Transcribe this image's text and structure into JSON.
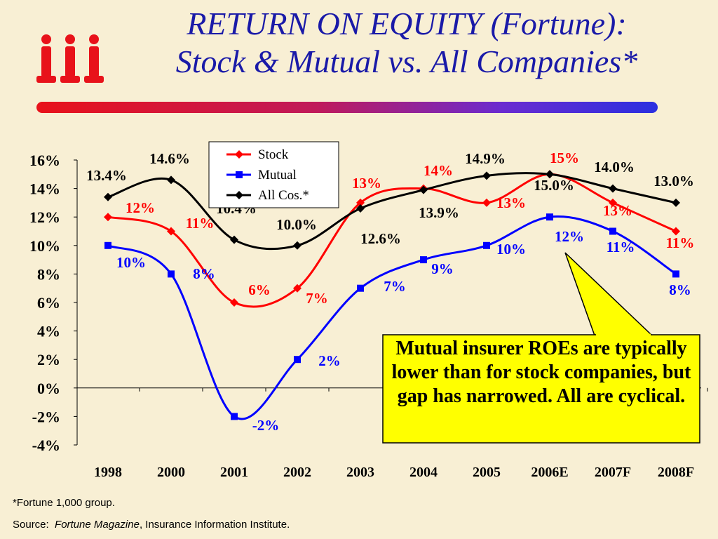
{
  "title": {
    "line1": "RETURN ON EQUITY (Fortune):",
    "line2": "Stock & Mutual vs. All Companies*"
  },
  "logo": {
    "name": "iii-logo",
    "text": "iii",
    "color": "#e8121a"
  },
  "callout": {
    "text": "Mutual insurer ROEs are typically lower than for stock companies, but gap has narrowed. All are cyclical.",
    "background": "#ffff00"
  },
  "footnote": "*Fortune 1,000 group.",
  "source": {
    "label": "Source:",
    "publication": "Fortune Magazine",
    "rest": ", Insurance Information Institute."
  },
  "chart_data": {
    "type": "line",
    "categories": [
      "1998",
      "2000",
      "2001",
      "2002",
      "2003",
      "2004",
      "2005",
      "2006E",
      "2007F",
      "2008F"
    ],
    "ylim": [
      -4,
      16
    ],
    "yticks": [
      "-4%",
      "-2%",
      "0%",
      "2%",
      "4%",
      "6%",
      "8%",
      "10%",
      "12%",
      "14%",
      "16%"
    ],
    "grid": false,
    "legend": {
      "placement": "top-center"
    },
    "series": [
      {
        "name": "Stock",
        "color": "#ff0000",
        "marker": "diamond",
        "values": [
          12,
          11,
          6,
          7,
          13,
          14,
          13,
          15,
          13,
          11
        ],
        "labels": [
          "12%",
          "11%",
          "6%",
          "7%",
          "13%",
          "14%",
          "13%",
          "15%",
          "13%",
          "11%"
        ]
      },
      {
        "name": "Mutual",
        "color": "#0000ff",
        "marker": "square",
        "values": [
          10,
          8,
          -2,
          2,
          7,
          9,
          10,
          12,
          11,
          8
        ],
        "labels": [
          "10%",
          "8%",
          "-2%",
          "2%",
          "7%",
          "9%",
          "10%",
          "12%",
          "11%",
          "8%"
        ]
      },
      {
        "name": "All Cos.*",
        "color": "#000000",
        "marker": "diamond",
        "values": [
          13.4,
          14.6,
          10.4,
          10.0,
          12.6,
          13.9,
          14.9,
          15.0,
          14.0,
          13.0
        ],
        "labels": [
          "13.4%",
          "14.6%",
          "10.4%",
          "10.0%",
          "12.6%",
          "13.9%",
          "14.9%",
          "15.0%",
          "14.0%",
          "13.0%"
        ]
      }
    ]
  }
}
